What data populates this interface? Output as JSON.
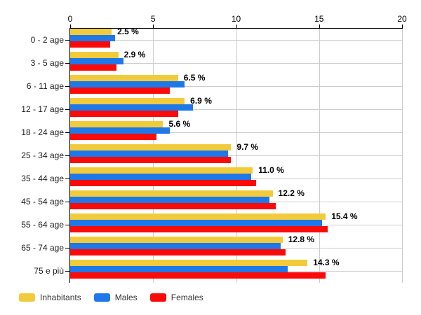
{
  "chart_data": {
    "type": "bar",
    "orientation": "horizontal",
    "title": "",
    "categories": [
      "0 - 2 age",
      "3 - 5 age",
      "6 - 11 age",
      "12 - 17 age",
      "18 - 24 age",
      "25 - 34 age",
      "35 - 44 age",
      "45 - 54 age",
      "55 - 64 age",
      "65 - 74 age",
      "75 e più"
    ],
    "series": [
      {
        "name": "Inhabitants",
        "color": "#F2CB3D",
        "values": [
          2.5,
          2.9,
          6.5,
          6.9,
          5.6,
          9.7,
          11.0,
          12.2,
          15.4,
          12.8,
          14.3
        ]
      },
      {
        "name": "Males",
        "color": "#1E78E8",
        "values": [
          2.7,
          3.2,
          6.9,
          7.4,
          6.0,
          9.5,
          10.9,
          12.0,
          15.2,
          12.7,
          13.1
        ]
      },
      {
        "name": "Females",
        "color": "#FB0A0A",
        "values": [
          2.4,
          2.8,
          6.0,
          6.5,
          5.2,
          9.7,
          11.2,
          12.4,
          15.5,
          13.0,
          15.4
        ]
      }
    ],
    "value_labels": [
      "2.5 %",
      "2.9 %",
      "6.5 %",
      "6.9 %",
      "5.6 %",
      "9.7 %",
      "11.0 %",
      "12.2 %",
      "15.4 %",
      "12.8 %",
      "14.3 %"
    ],
    "x_axis": {
      "min": 0,
      "max": 20,
      "ticks": [
        0,
        5,
        10,
        15,
        20
      ],
      "position": "top"
    },
    "grid": true,
    "legend_position": "bottom-left",
    "colors": {
      "grid": "#cccccc",
      "axis": "#000000",
      "value_label": "#000000",
      "category_label": "#222222",
      "legend_label": "#333333",
      "background": "#ffffff"
    }
  }
}
